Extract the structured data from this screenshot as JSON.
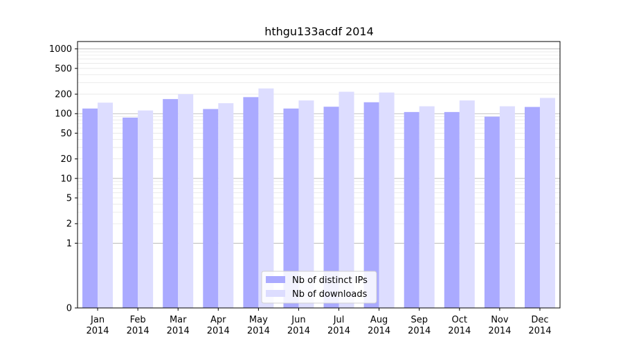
{
  "chart_data": {
    "type": "bar",
    "title": "hthgu133acdf 2014",
    "xlabel": "",
    "ylabel": "",
    "y_scale": "symlog",
    "ylim": [
      0,
      1300
    ],
    "y_ticks": [
      0,
      1,
      2,
      5,
      10,
      20,
      50,
      100,
      200,
      500,
      1000
    ],
    "grid": true,
    "legend_position": "bottom-center",
    "categories": [
      [
        "Jan",
        "2014"
      ],
      [
        "Feb",
        "2014"
      ],
      [
        "Mar",
        "2014"
      ],
      [
        "Apr",
        "2014"
      ],
      [
        "May",
        "2014"
      ],
      [
        "Jun",
        "2014"
      ],
      [
        "Jul",
        "2014"
      ],
      [
        "Aug",
        "2014"
      ],
      [
        "Sep",
        "2014"
      ],
      [
        "Oct",
        "2014"
      ],
      [
        "Nov",
        "2014"
      ],
      [
        "Dec",
        "2014"
      ]
    ],
    "series": [
      {
        "name": "Nb of distinct IPs",
        "color": "#aaaaff",
        "values": [
          120,
          87,
          168,
          118,
          180,
          120,
          128,
          150,
          106,
          106,
          90,
          127
        ]
      },
      {
        "name": "Nb of downloads",
        "color": "#ddddff",
        "values": [
          148,
          112,
          200,
          145,
          245,
          160,
          218,
          212,
          130,
          160,
          130,
          175
        ]
      }
    ]
  }
}
